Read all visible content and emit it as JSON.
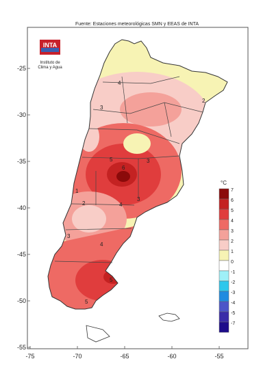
{
  "header": {
    "source": "Fuente: Estaciones meteorológicas SMN y EEAS de INTA"
  },
  "logo": {
    "brand": "INTA",
    "line1": "Instituto de",
    "line2": "Clima y Agua"
  },
  "axes": {
    "lat_labels": [
      "-25",
      "-30",
      "-35",
      "-40",
      "-45",
      "-50",
      "-55"
    ],
    "lon_labels": [
      "-75",
      "-70",
      "-65",
      "-60",
      "-55"
    ]
  },
  "contour_labels": [
    "4",
    "2",
    "3",
    "5",
    "6",
    "3",
    "4",
    "3",
    "1",
    "2",
    "4",
    "5",
    "5",
    "3"
  ],
  "legend": {
    "unit": "°C",
    "items": [
      {
        "label": "7",
        "color": "#8b0a0a"
      },
      {
        "label": "6",
        "color": "#c42222"
      },
      {
        "label": "5",
        "color": "#e03d3d"
      },
      {
        "label": "4",
        "color": "#ee6a64"
      },
      {
        "label": "3",
        "color": "#f4a19a"
      },
      {
        "label": "2",
        "color": "#f8cdc7"
      },
      {
        "label": "1",
        "color": "#f7f3b4"
      },
      {
        "label": "0",
        "color": "#ffffff"
      },
      {
        "label": "-1",
        "color": "#9ff0f8"
      },
      {
        "label": "-2",
        "color": "#2ec7ec"
      },
      {
        "label": "-3",
        "color": "#1f8be0"
      },
      {
        "label": "-4",
        "color": "#4c55c8"
      },
      {
        "label": "-5",
        "color": "#3a2ca8"
      },
      {
        "label": "-7",
        "color": "#1d0c8a"
      }
    ]
  }
}
